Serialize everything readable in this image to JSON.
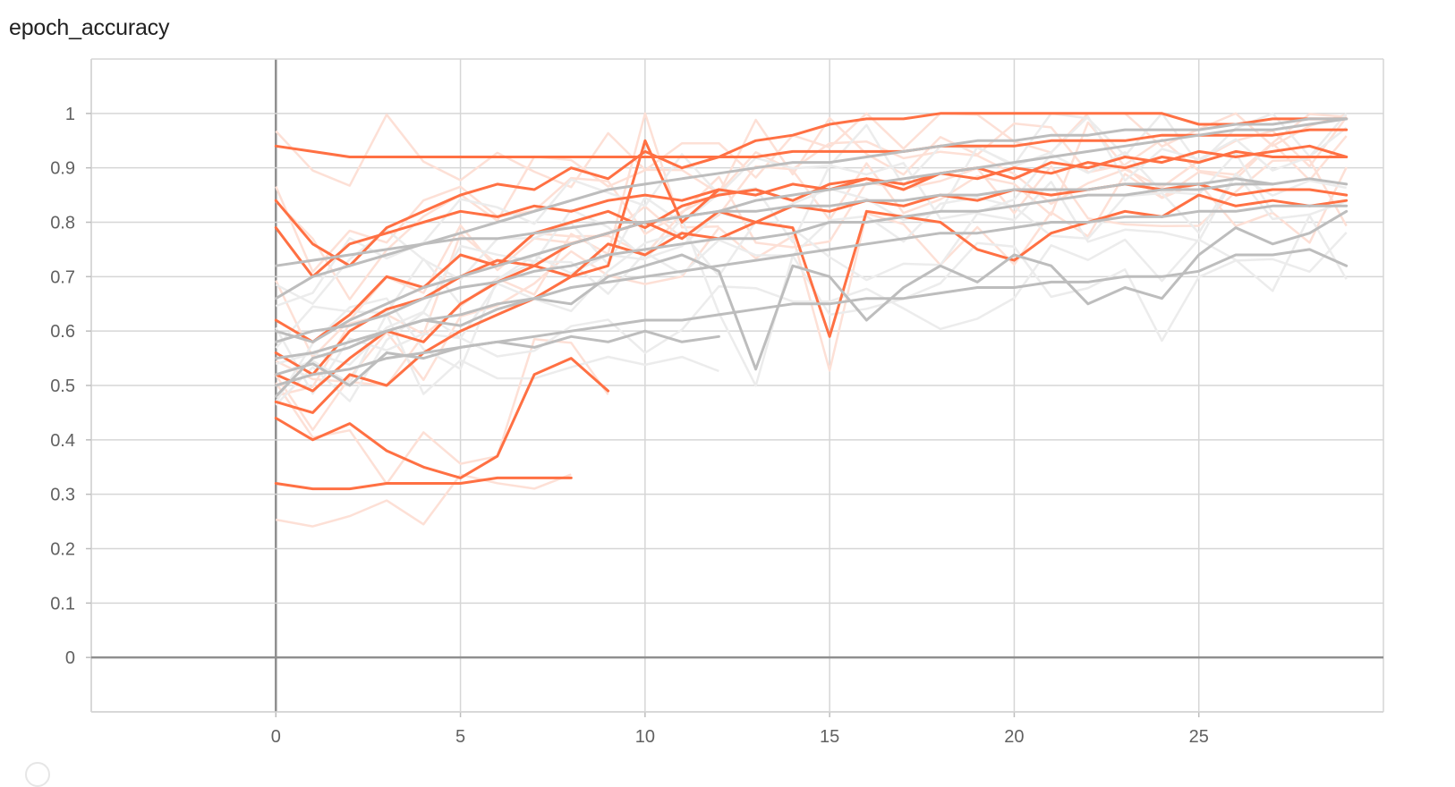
{
  "card": {
    "title": "epoch_accuracy",
    "colors": {
      "primary": "#ff7043",
      "secondary": "#bdbdbd",
      "faded_primary": "#fde0d6",
      "faded_secondary": "#ececec"
    }
  },
  "chart_data": {
    "type": "line",
    "title": "epoch_accuracy",
    "xlabel": "",
    "ylabel": "",
    "xlim": [
      -5,
      30
    ],
    "ylim": [
      -0.1,
      1.1
    ],
    "x_ticks": [
      "0",
      "5",
      "10",
      "15",
      "20",
      "25"
    ],
    "y_ticks": [
      "0",
      "0.1",
      "0.2",
      "0.3",
      "0.4",
      "0.5",
      "0.6",
      "0.7",
      "0.8",
      "0.9",
      "1"
    ],
    "grid": true,
    "legend": "none",
    "note_series": "Many overlapping runs; representative traces. 'orange' style runs and 'gray' style runs, each with raw (faded) and smoothed (solid) lines.",
    "series": [
      {
        "style": "orange",
        "x": [
          0,
          1,
          2,
          3,
          4,
          5,
          6,
          7,
          8,
          9,
          10,
          11,
          12,
          13,
          14,
          15,
          16,
          17,
          18,
          19,
          20,
          21,
          22,
          23,
          24,
          25,
          26,
          27,
          28,
          29
        ],
        "y": [
          0.84,
          0.76,
          0.72,
          0.79,
          0.82,
          0.85,
          0.87,
          0.86,
          0.9,
          0.88,
          0.93,
          0.9,
          0.92,
          0.95,
          0.96,
          0.98,
          0.99,
          0.99,
          1.0,
          1.0,
          1.0,
          1.0,
          1.0,
          1.0,
          1.0,
          0.98,
          0.98,
          0.99,
          0.99,
          0.99
        ]
      },
      {
        "style": "orange",
        "x": [
          0,
          1,
          2,
          3,
          4,
          5,
          6,
          7,
          8,
          9,
          10,
          11,
          12,
          13,
          14,
          15,
          16,
          17,
          18,
          19,
          20,
          21,
          22,
          23,
          24,
          25,
          26,
          27,
          28,
          29
        ],
        "y": [
          0.94,
          0.93,
          0.92,
          0.92,
          0.92,
          0.92,
          0.92,
          0.92,
          0.92,
          0.92,
          0.92,
          0.92,
          0.92,
          0.92,
          0.93,
          0.93,
          0.93,
          0.93,
          0.94,
          0.94,
          0.94,
          0.95,
          0.95,
          0.95,
          0.96,
          0.96,
          0.96,
          0.96,
          0.97,
          0.97
        ]
      },
      {
        "style": "orange",
        "x": [
          0,
          1,
          2,
          3,
          4,
          5,
          6,
          7,
          8,
          9,
          10,
          11,
          12,
          13,
          14,
          15,
          16,
          17,
          18,
          19,
          20,
          21,
          22,
          23,
          24,
          25,
          26,
          27,
          28,
          29
        ],
        "y": [
          0.62,
          0.58,
          0.63,
          0.7,
          0.68,
          0.74,
          0.72,
          0.78,
          0.8,
          0.82,
          0.79,
          0.83,
          0.85,
          0.86,
          0.84,
          0.87,
          0.88,
          0.86,
          0.89,
          0.9,
          0.88,
          0.91,
          0.9,
          0.92,
          0.91,
          0.93,
          0.92,
          0.93,
          0.94,
          0.92
        ]
      },
      {
        "style": "orange",
        "x": [
          0,
          1,
          2,
          3,
          4,
          5,
          6,
          7,
          8,
          9,
          10,
          11,
          12,
          13,
          14,
          15,
          16,
          17,
          18,
          19,
          20,
          21,
          22,
          23,
          24,
          25,
          26,
          27,
          28,
          29
        ],
        "y": [
          0.56,
          0.52,
          0.6,
          0.64,
          0.66,
          0.7,
          0.73,
          0.72,
          0.76,
          0.78,
          0.8,
          0.77,
          0.82,
          0.8,
          0.83,
          0.82,
          0.84,
          0.83,
          0.85,
          0.84,
          0.86,
          0.85,
          0.86,
          0.87,
          0.86,
          0.87,
          0.85,
          0.86,
          0.86,
          0.85
        ]
      },
      {
        "style": "orange",
        "x": [
          0,
          1,
          2,
          3,
          4,
          5,
          6,
          7,
          8,
          9,
          10,
          11,
          12,
          13,
          14,
          15,
          16,
          17,
          18,
          19,
          20,
          21,
          22,
          23,
          24,
          25,
          26,
          27,
          28,
          29
        ],
        "y": [
          0.52,
          0.49,
          0.55,
          0.6,
          0.58,
          0.65,
          0.69,
          0.72,
          0.7,
          0.76,
          0.74,
          0.78,
          0.77,
          0.8,
          0.79,
          0.59,
          0.82,
          0.81,
          0.8,
          0.75,
          0.73,
          0.78,
          0.8,
          0.82,
          0.81,
          0.85,
          0.83,
          0.84,
          0.83,
          0.84
        ]
      },
      {
        "style": "orange",
        "x": [
          0,
          1,
          2,
          3,
          4,
          5,
          6,
          7,
          8
        ],
        "y": [
          0.32,
          0.31,
          0.31,
          0.32,
          0.32,
          0.32,
          0.33,
          0.33,
          0.33
        ]
      },
      {
        "style": "orange",
        "x": [
          0,
          1,
          2,
          3,
          4,
          5,
          6,
          7,
          8,
          9
        ],
        "y": [
          0.44,
          0.4,
          0.43,
          0.38,
          0.35,
          0.33,
          0.37,
          0.52,
          0.55,
          0.49
        ]
      },
      {
        "style": "orange",
        "x": [
          0,
          1,
          2,
          3,
          4,
          5,
          6,
          7,
          8,
          9,
          10,
          11,
          12
        ],
        "y": [
          0.47,
          0.45,
          0.52,
          0.5,
          0.56,
          0.6,
          0.63,
          0.66,
          0.7,
          0.72,
          0.95,
          0.8,
          0.86
        ]
      },
      {
        "style": "orange",
        "x": [
          0,
          1,
          2,
          3,
          4,
          5,
          6,
          7,
          8,
          9,
          10,
          11,
          12,
          13,
          14,
          15,
          16,
          17,
          18,
          19,
          20,
          21,
          22,
          23,
          24,
          25,
          26,
          27,
          28,
          29
        ],
        "y": [
          0.79,
          0.7,
          0.76,
          0.78,
          0.8,
          0.82,
          0.81,
          0.83,
          0.82,
          0.84,
          0.85,
          0.84,
          0.86,
          0.85,
          0.87,
          0.86,
          0.88,
          0.87,
          0.89,
          0.88,
          0.9,
          0.89,
          0.91,
          0.9,
          0.92,
          0.91,
          0.93,
          0.92,
          0.92,
          0.92
        ]
      },
      {
        "style": "gray",
        "x": [
          0,
          1,
          2,
          3,
          4,
          5,
          6,
          7,
          8,
          9,
          10,
          11,
          12,
          13,
          14,
          15,
          16,
          17,
          18,
          19,
          20,
          21,
          22,
          23,
          24,
          25,
          26,
          27,
          28,
          29
        ],
        "y": [
          0.6,
          0.58,
          0.62,
          0.65,
          0.68,
          0.7,
          0.72,
          0.74,
          0.76,
          0.78,
          0.8,
          0.81,
          0.82,
          0.84,
          0.85,
          0.86,
          0.87,
          0.88,
          0.89,
          0.9,
          0.91,
          0.92,
          0.93,
          0.94,
          0.95,
          0.96,
          0.97,
          0.97,
          0.98,
          0.99
        ]
      },
      {
        "style": "gray",
        "x": [
          0,
          1,
          2,
          3,
          4,
          5,
          6,
          7,
          8,
          9,
          10,
          11,
          12,
          13,
          14,
          15,
          16,
          17,
          18,
          19,
          20,
          21,
          22,
          23,
          24,
          25,
          26,
          27,
          28,
          29
        ],
        "y": [
          0.55,
          0.56,
          0.58,
          0.6,
          0.62,
          0.63,
          0.65,
          0.66,
          0.68,
          0.69,
          0.7,
          0.71,
          0.72,
          0.73,
          0.74,
          0.75,
          0.76,
          0.77,
          0.78,
          0.78,
          0.79,
          0.8,
          0.8,
          0.81,
          0.81,
          0.82,
          0.82,
          0.83,
          0.83,
          0.83
        ]
      },
      {
        "style": "gray",
        "x": [
          0,
          1,
          2,
          3,
          4,
          5,
          6,
          7,
          8,
          9,
          10,
          11,
          12,
          13,
          14,
          15,
          16,
          17,
          18,
          19,
          20,
          21,
          22,
          23,
          24,
          25,
          26,
          27,
          28,
          29
        ],
        "y": [
          0.5,
          0.52,
          0.53,
          0.55,
          0.56,
          0.57,
          0.58,
          0.59,
          0.6,
          0.61,
          0.62,
          0.62,
          0.63,
          0.64,
          0.65,
          0.65,
          0.66,
          0.66,
          0.67,
          0.68,
          0.68,
          0.69,
          0.69,
          0.7,
          0.7,
          0.71,
          0.74,
          0.74,
          0.75,
          0.72
        ]
      },
      {
        "style": "gray",
        "x": [
          0,
          1,
          2,
          3,
          4,
          5,
          6,
          7,
          8,
          9,
          10,
          11,
          12,
          13,
          14,
          15,
          16,
          17,
          18,
          19,
          20,
          21,
          22,
          23,
          24,
          25,
          26,
          27,
          28,
          29
        ],
        "y": [
          0.58,
          0.6,
          0.61,
          0.63,
          0.66,
          0.68,
          0.69,
          0.71,
          0.72,
          0.74,
          0.75,
          0.76,
          0.77,
          0.77,
          0.78,
          0.8,
          0.8,
          0.81,
          0.82,
          0.82,
          0.83,
          0.84,
          0.85,
          0.85,
          0.86,
          0.86,
          0.87,
          0.87,
          0.88,
          0.87
        ]
      },
      {
        "style": "gray",
        "x": [
          0,
          1,
          2,
          3,
          4,
          5,
          6,
          7,
          8,
          9,
          10,
          11,
          12,
          13,
          14,
          15,
          16,
          17,
          18,
          19,
          20,
          21,
          22,
          23,
          24,
          25,
          26,
          27,
          28,
          29
        ],
        "y": [
          0.48,
          0.55,
          0.57,
          0.6,
          0.62,
          0.61,
          0.64,
          0.66,
          0.65,
          0.7,
          0.72,
          0.74,
          0.71,
          0.53,
          0.72,
          0.7,
          0.62,
          0.68,
          0.72,
          0.69,
          0.74,
          0.72,
          0.65,
          0.68,
          0.66,
          0.74,
          0.79,
          0.76,
          0.78,
          0.82
        ]
      },
      {
        "style": "gray",
        "x": [
          0,
          1,
          2,
          3,
          4,
          5,
          6,
          7,
          8,
          9,
          10,
          11,
          12
        ],
        "y": [
          0.52,
          0.54,
          0.5,
          0.56,
          0.55,
          0.57,
          0.58,
          0.57,
          0.59,
          0.58,
          0.6,
          0.58,
          0.59
        ]
      },
      {
        "style": "gray",
        "x": [
          0,
          1,
          2,
          3,
          4,
          5,
          6,
          7,
          8,
          9,
          10,
          11,
          12,
          13,
          14,
          15,
          16,
          17,
          18,
          19,
          20,
          21,
          22,
          23,
          24,
          25,
          26,
          27,
          28,
          29
        ],
        "y": [
          0.66,
          0.7,
          0.72,
          0.74,
          0.76,
          0.78,
          0.8,
          0.82,
          0.84,
          0.86,
          0.87,
          0.88,
          0.89,
          0.9,
          0.91,
          0.91,
          0.92,
          0.93,
          0.94,
          0.95,
          0.95,
          0.96,
          0.96,
          0.97,
          0.97,
          0.97,
          0.98,
          0.98,
          0.99,
          0.99
        ]
      },
      {
        "style": "gray",
        "x": [
          0,
          1,
          2,
          3,
          4,
          5,
          6,
          7,
          8,
          9,
          10,
          11,
          12,
          13,
          14,
          15,
          16,
          17,
          18,
          19,
          20,
          21,
          22,
          23,
          24,
          25,
          26,
          27
        ],
        "y": [
          0.72,
          0.73,
          0.74,
          0.75,
          0.76,
          0.77,
          0.77,
          0.78,
          0.79,
          0.8,
          0.8,
          0.81,
          0.82,
          0.82,
          0.83,
          0.83,
          0.84,
          0.84,
          0.85,
          0.85,
          0.86,
          0.86,
          0.86,
          0.87,
          0.87,
          0.87,
          0.88,
          0.87
        ]
      }
    ]
  }
}
